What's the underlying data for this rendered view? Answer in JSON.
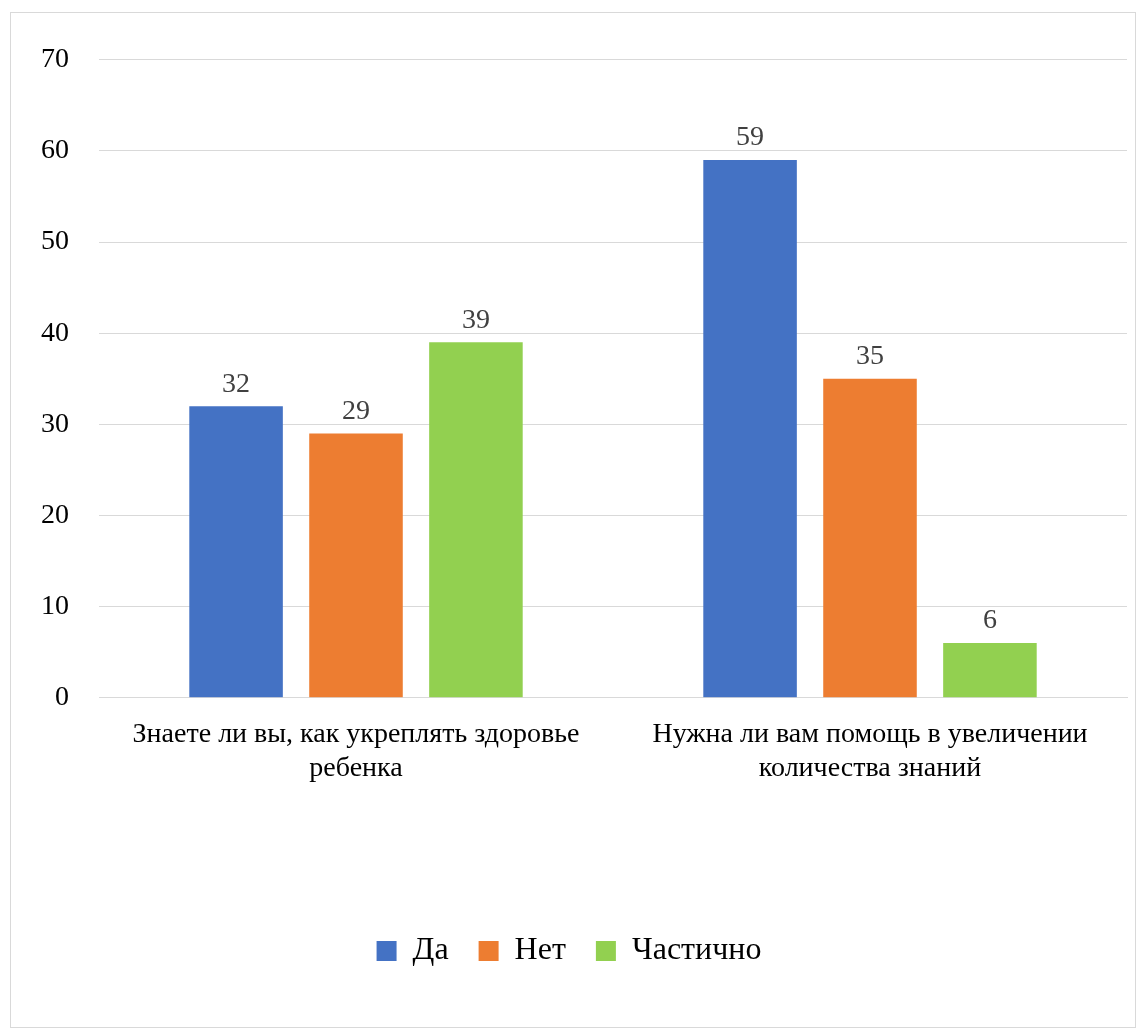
{
  "chart_data": {
    "type": "bar",
    "categories": [
      "Знаете ли вы, как укреплять здоровье ребенка",
      "Нужна ли вам помощь в увеличении количества знаний"
    ],
    "series": [
      {
        "name": "Да",
        "color": "#4472c4",
        "values": [
          32,
          59
        ]
      },
      {
        "name": "Нет",
        "color": "#ed7d31",
        "values": [
          29,
          35
        ]
      },
      {
        "name": "Частично",
        "color": "#92d050",
        "values": [
          39,
          6
        ]
      }
    ],
    "ylim": [
      0,
      70
    ],
    "yticks": [
      0,
      10,
      20,
      30,
      40,
      50,
      60,
      70
    ],
    "grid": "y",
    "legend": "bottom",
    "data_labels": true
  }
}
